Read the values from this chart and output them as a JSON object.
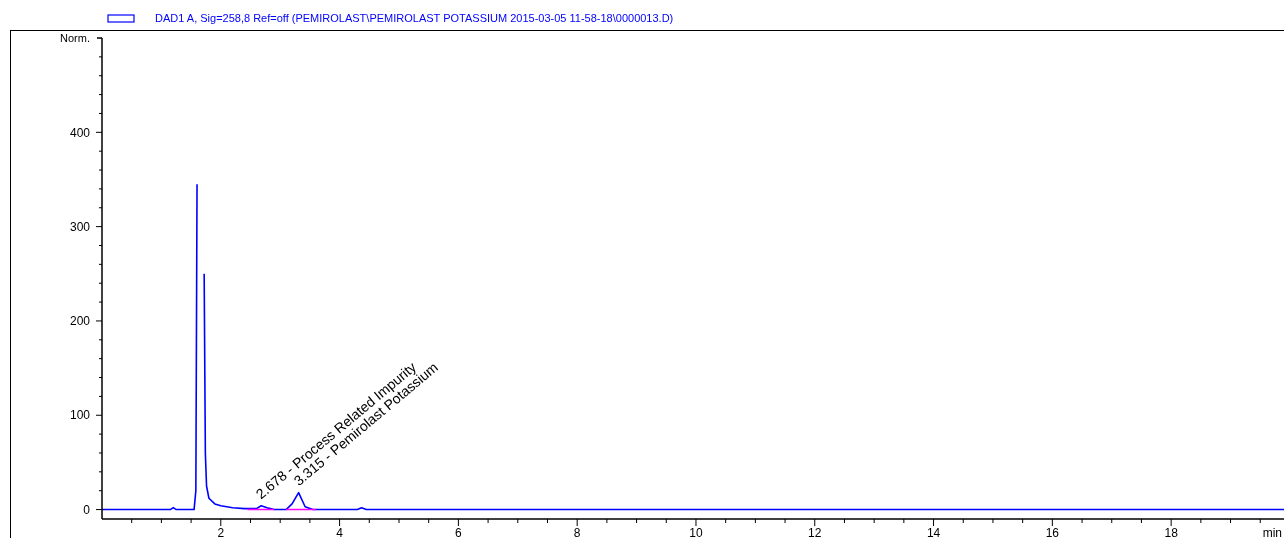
{
  "chart_data": {
    "type": "line",
    "ylabel": "Norm.",
    "xlabel": "min",
    "legend": "top left",
    "marker": "none",
    "line_style": "solid",
    "grid": false,
    "xlim": [
      0,
      19.9
    ],
    "ylim": [
      -10,
      500
    ],
    "xticks": [
      {
        "value": 0.5,
        "label": null
      },
      {
        "value": 1,
        "label": null
      },
      {
        "value": 1.5,
        "label": null
      },
      2,
      {
        "value": 2.5,
        "label": null
      },
      {
        "value": 3,
        "label": null
      },
      {
        "value": 3.5,
        "label": null
      },
      4,
      {
        "value": 4.5,
        "label": null
      },
      {
        "value": 5,
        "label": null
      },
      {
        "value": 5.5,
        "label": null
      },
      6,
      {
        "value": 6.5,
        "label": null
      },
      {
        "value": 7,
        "label": null
      },
      {
        "value": 7.5,
        "label": null
      },
      8,
      {
        "value": 8.5,
        "label": null
      },
      {
        "value": 9,
        "label": null
      },
      {
        "value": 9.5,
        "label": null
      },
      10,
      {
        "value": 10.5,
        "label": null
      },
      {
        "value": 11,
        "label": null
      },
      {
        "value": 11.5,
        "label": null
      },
      12,
      {
        "value": 12.5,
        "label": null
      },
      {
        "value": 13,
        "label": null
      },
      {
        "value": 13.5,
        "label": null
      },
      14,
      {
        "value": 14.5,
        "label": null
      },
      {
        "value": 15,
        "label": null
      },
      {
        "value": 15.5,
        "label": null
      },
      16,
      {
        "value": 16.5,
        "label": null
      },
      {
        "value": 17,
        "label": null
      },
      {
        "value": 17.5,
        "label": null
      },
      18,
      {
        "value": 18.5,
        "label": null
      },
      {
        "value": 19,
        "label": null
      },
      {
        "value": 19.5,
        "label": null
      }
    ],
    "yticks": [
      0,
      {
        "value": 20,
        "label": null
      },
      {
        "value": 40,
        "label": null
      },
      {
        "value": 60,
        "label": null
      },
      {
        "value": 80,
        "label": null
      },
      100,
      {
        "value": 120,
        "label": null
      },
      {
        "value": 140,
        "label": null
      },
      {
        "value": 160,
        "label": null
      },
      {
        "value": 180,
        "label": null
      },
      200,
      {
        "value": 220,
        "label": null
      },
      {
        "value": 240,
        "label": null
      },
      {
        "value": 260,
        "label": null
      },
      {
        "value": 280,
        "label": null
      },
      300,
      {
        "value": 320,
        "label": null
      },
      {
        "value": 340,
        "label": null
      },
      {
        "value": 360,
        "label": null
      },
      {
        "value": 380,
        "label": null
      },
      400,
      {
        "value": 420,
        "label": null
      },
      {
        "value": 440,
        "label": null
      },
      {
        "value": 460,
        "label": null
      },
      {
        "value": 480,
        "label": null
      }
    ],
    "series": [
      {
        "name": "DAD1 A, Sig=258,8 Ref=off (PEMIROLAST\\PEMIROLAST POTASSIUM 2015-03-05 11-58-18\\0000013.D)",
        "color": "#0000ff",
        "x": [
          0,
          1.15,
          1.2,
          1.25,
          1.55,
          1.58,
          1.6,
          1.62,
          1.7,
          1.72,
          1.74,
          1.76,
          1.8,
          1.9,
          2.0,
          2.1,
          2.2,
          2.4,
          2.6,
          2.68,
          2.78,
          2.9,
          3.1,
          3.2,
          3.31,
          3.42,
          3.55,
          4.3,
          4.37,
          4.45,
          19.9
        ],
        "values": [
          0,
          0,
          2,
          0,
          0,
          20,
          345,
          null,
          null,
          250,
          60,
          25,
          12,
          6,
          4,
          3,
          2,
          1,
          1,
          4,
          2,
          0,
          0,
          6,
          18,
          3,
          0,
          0,
          2,
          0,
          0
        ]
      },
      {
        "type": "line",
        "color": "#ff00ff",
        "x": [
          2.45,
          2.9,
          3.0,
          3.1,
          3.6
        ],
        "values": [
          0,
          0,
          null,
          0,
          0
        ]
      }
    ],
    "annotations": [
      {
        "text": "2.678 - Process Related Impurity",
        "x": 2.678,
        "y": 4
      },
      {
        "text": "3.315 - Pemirolast Potassium",
        "x": 3.315,
        "y": 18
      }
    ]
  }
}
